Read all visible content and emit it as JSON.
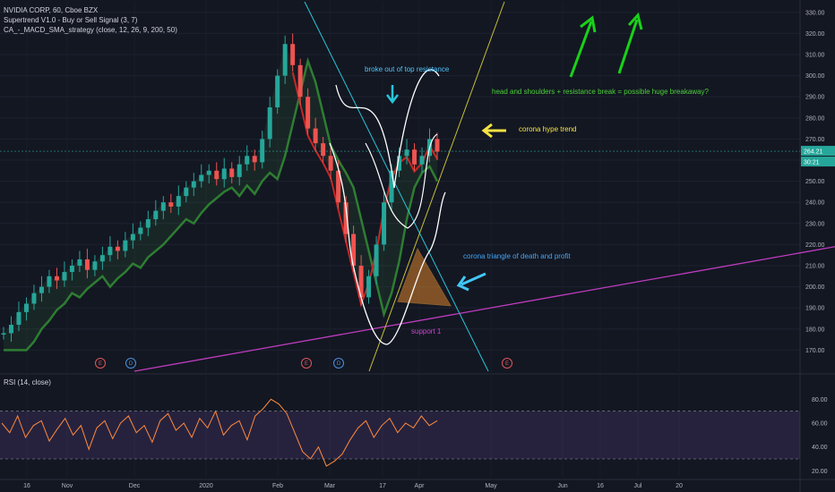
{
  "header": {
    "title": "NVIDIA CORP, 60, Cboe BZX",
    "indicator_1": "Supertrend V1.0 - Buy or Sell Signal (3, 7)",
    "indicator_2": "CA_-_MACD_SMA_strategy (close, 12, 26, 9, 200, 50)"
  },
  "rsi": {
    "label": "RSI (14, close)",
    "upper": 70,
    "lower": 30
  },
  "annotations": {
    "top_resistance": "broke out of top resistance",
    "head_shoulders": "head and shoulders + resistance break = possible huge breakaway?",
    "hype_trend": "corona hype trend",
    "triangle": "corona triangle of death and profit",
    "support": "support 1"
  },
  "price_labels": {
    "last": "264.21",
    "countdown": "30:21"
  },
  "events": [
    "E",
    "D",
    "E",
    "D",
    "E"
  ],
  "colors": {
    "background": "#131722",
    "up": "#26a69a",
    "down": "#ef5350",
    "ma_green": "#2e7d32",
    "rsi_line": "#ff8a3d",
    "rsi_band": "#7e57c2"
  },
  "chart_data": [
    {
      "type": "line",
      "title": "",
      "x_ticks": [
        "16",
        "Nov",
        "Dec",
        "2020",
        "Feb",
        "Mar",
        "17",
        "Apr",
        "May",
        "Jun",
        "16",
        "Jul",
        "20"
      ],
      "ylim": [
        160,
        335
      ],
      "y_ticks": [
        170,
        180,
        190,
        200,
        210,
        220,
        230,
        240,
        250,
        260,
        270,
        280,
        290,
        300,
        310,
        320,
        330
      ],
      "series": [
        {
          "name": "",
          "values": [
            178,
            182,
            188,
            192,
            197,
            200,
            205,
            203,
            207,
            210,
            213,
            208,
            212,
            215,
            219,
            217,
            222,
            225,
            228,
            232,
            236,
            240,
            238,
            243,
            247,
            250,
            253,
            255,
            251,
            256,
            252,
            258,
            262,
            259,
            270,
            285,
            300,
            315,
            305,
            290,
            275,
            268,
            262,
            255,
            240,
            225,
            210,
            195,
            205,
            220,
            240,
            255,
            262,
            265,
            258,
            262,
            270,
            264
          ]
        }
      ]
    },
    {
      "type": "line",
      "title": "",
      "ylim": [
        15,
        90
      ],
      "y_ticks": [
        20,
        40,
        60,
        80
      ],
      "series": [
        {
          "name": "",
          "values": [
            60,
            52,
            66,
            48,
            58,
            62,
            45,
            55,
            64,
            50,
            58,
            38,
            56,
            62,
            47,
            60,
            66,
            52,
            58,
            44,
            62,
            68,
            54,
            60,
            48,
            64,
            56,
            70,
            50,
            58,
            62,
            46,
            66,
            72,
            80,
            76,
            68,
            52,
            36,
            30,
            40,
            24,
            28,
            34,
            46,
            56,
            62,
            48,
            58,
            64,
            52,
            60,
            56,
            66,
            58,
            62
          ]
        }
      ]
    }
  ]
}
